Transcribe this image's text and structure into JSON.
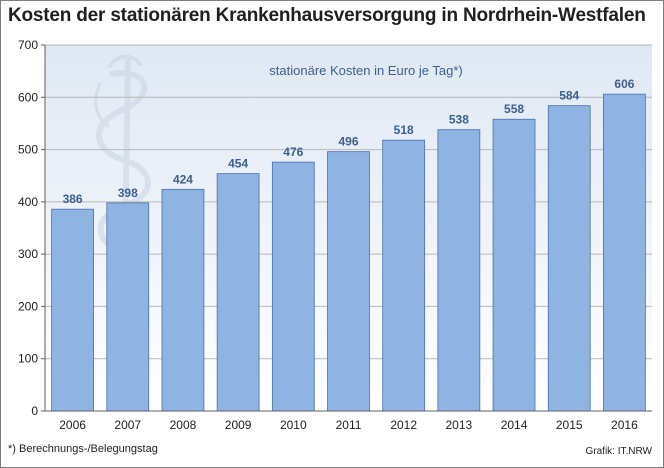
{
  "title": "Kosten der stationären Krankenhausversorgung in Nordrhein-Westfalen",
  "footnote": "*) Berechnungs-/Belegungstag",
  "credit": "Grafik: IT.NRW",
  "colors": {
    "bar_fill": "#8fb4e3",
    "bar_stroke": "#4a6fa5",
    "value_label": "#3b5f8f",
    "plot_bg_top": "#dfe8f4",
    "plot_bg_bottom": "#ffffff"
  },
  "chart_data": {
    "type": "bar",
    "title": "Kosten der stationären Krankenhausversorgung in Nordrhein-Westfalen",
    "subtitle": "stationäre Kosten in Euro je Tag*)",
    "xlabel": "",
    "ylabel": "",
    "categories": [
      "2006",
      "2007",
      "2008",
      "2009",
      "2010",
      "2011",
      "2012",
      "2013",
      "2014",
      "2015",
      "2016"
    ],
    "values": [
      386,
      398,
      424,
      454,
      476,
      496,
      518,
      538,
      558,
      584,
      606
    ],
    "ylim": [
      0,
      700
    ],
    "yticks": [
      0,
      100,
      200,
      300,
      400,
      500,
      600,
      700
    ],
    "grid": true,
    "legend": "none",
    "data_labels": true
  }
}
